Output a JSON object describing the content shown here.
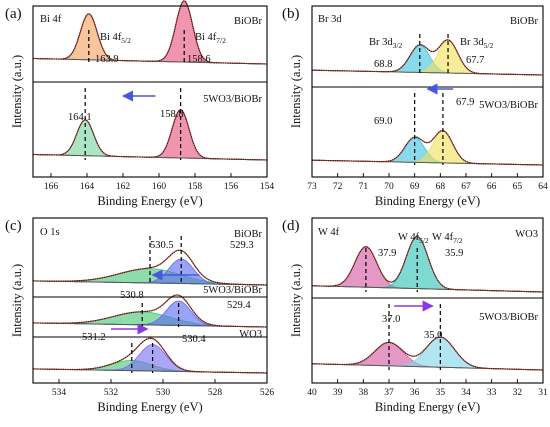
{
  "chart_data": [
    {
      "type": "line",
      "panel": "(a)",
      "core_level": "Bi 4f",
      "xlabel": "Binding Energy (eV)",
      "ylabel": "Intensity (a.u.)",
      "xlim": [
        167,
        154
      ],
      "xticks": [
        166,
        164,
        162,
        160,
        158,
        156,
        154
      ],
      "arrow": {
        "from": 160.2,
        "to": 162.0
      },
      "spectra": [
        {
          "sample": "BiOBr",
          "peaks": [
            {
              "label": "Bi 4f",
              "sub": "5/2",
              "center": 163.9,
              "amplitude": 1.0,
              "fwhm": 1.1,
              "color": "#f4a261"
            },
            {
              "label": "Bi 4f",
              "sub": "7/2",
              "center": 158.6,
              "amplitude": 1.33,
              "fwhm": 1.1,
              "color": "#e75480"
            }
          ],
          "values": [
            "163.9",
            "158.6"
          ]
        },
        {
          "sample": "5WO3/BiOBr",
          "peaks": [
            {
              "center": 164.1,
              "amplitude": 0.78,
              "fwhm": 1.1,
              "color": "#76d7a0"
            },
            {
              "center": 158.8,
              "amplitude": 1.05,
              "fwhm": 1.1,
              "color": "#e75480"
            }
          ],
          "values": [
            "164.1",
            "158.8"
          ]
        }
      ]
    },
    {
      "type": "line",
      "panel": "(b)",
      "core_level": "Br  3d",
      "xlabel": "Binding Energy (eV)",
      "ylabel": "Intensity (a.u.)",
      "xlim": [
        73,
        64
      ],
      "xticks": [
        73,
        72,
        71,
        70,
        69,
        68,
        67,
        66,
        65,
        64
      ],
      "arrow": {
        "from": 67.5,
        "to": 68.5
      },
      "spectra": [
        {
          "sample": "BiOBr",
          "peaks": [
            {
              "label": "Br 3d",
              "sub": "3/2",
              "center": 68.8,
              "amplitude": 0.68,
              "fwhm": 0.9,
              "color": "#40c4e0"
            },
            {
              "label": "Br 3d",
              "sub": "5/2",
              "center": 67.7,
              "amplitude": 0.82,
              "fwhm": 0.9,
              "color": "#f1e05a"
            }
          ],
          "values": [
            "68.8",
            "67.7"
          ]
        },
        {
          "sample": "5WO3/BiOBr",
          "peaks": [
            {
              "center": 69.0,
              "amplitude": 0.62,
              "fwhm": 0.9,
              "color": "#40c4e0"
            },
            {
              "center": 67.9,
              "amplitude": 0.8,
              "fwhm": 0.9,
              "color": "#f1e05a"
            }
          ],
          "values": [
            "69.0",
            "67.9"
          ]
        }
      ]
    },
    {
      "type": "line",
      "panel": "(c)",
      "core_level": "O 1s",
      "xlabel": "Binding Energy (eV)",
      "ylabel": "Intensity (a.u.)",
      "xlim": [
        535,
        526
      ],
      "xticks": [
        534,
        532,
        530,
        528,
        526
      ],
      "arrows": [
        {
          "from": 528.6,
          "to": 530.4
        },
        {
          "from": 532.0,
          "to": 530.6
        }
      ],
      "spectra": [
        {
          "sample": "BiOBr",
          "peaks": [
            {
              "center": 530.5,
              "amplitude": 0.42,
              "fwhm": 2.8,
              "color": "#48c774"
            },
            {
              "center": 529.3,
              "amplitude": 0.72,
              "fwhm": 1.1,
              "color": "#5b6cf0"
            }
          ],
          "values": [
            "530.5",
            "529.3"
          ]
        },
        {
          "sample": "5WO3/BiOBr",
          "peaks": [
            {
              "center": 530.8,
              "amplitude": 0.38,
              "fwhm": 2.6,
              "color": "#48c774"
            },
            {
              "center": 529.4,
              "amplitude": 0.72,
              "fwhm": 1.1,
              "color": "#5b6cf0"
            }
          ],
          "values": [
            "530.8",
            "529.4"
          ]
        },
        {
          "sample": "WO3",
          "peaks": [
            {
              "center": 531.2,
              "amplitude": 0.3,
              "fwhm": 1.8,
              "color": "#48c774"
            },
            {
              "center": 530.4,
              "amplitude": 0.78,
              "fwhm": 1.2,
              "color": "#7b6ff0"
            }
          ],
          "values": [
            "531.2",
            "530.4"
          ]
        }
      ]
    },
    {
      "type": "line",
      "panel": "(d)",
      "core_level": "W 4f",
      "xlabel": "Binding Energy (eV)",
      "ylabel": "Intensity (a.u.)",
      "xlim": [
        40,
        31
      ],
      "xticks": [
        40,
        39,
        38,
        37,
        36,
        35,
        34,
        33,
        32,
        31
      ],
      "arrow": {
        "from": 36.8,
        "to": 35.3
      },
      "spectra": [
        {
          "sample": "WO3",
          "peaks": [
            {
              "label": "W 4f",
              "sub": "5/2",
              "center": 37.9,
              "amplitude": 0.78,
              "fwhm": 1.0,
              "color": "#d35aa0"
            },
            {
              "label": "W 4f",
              "sub": "7/2",
              "center": 35.9,
              "amplitude": 1.0,
              "fwhm": 1.0,
              "color": "#2ec4b6"
            }
          ],
          "values": [
            "37.9",
            "35.9"
          ]
        },
        {
          "sample": "5WO3/BiOBr",
          "peaks": [
            {
              "center": 37.0,
              "amplitude": 0.45,
              "fwhm": 1.3,
              "color": "#d35aa0"
            },
            {
              "center": 35.0,
              "amplitude": 0.58,
              "fwhm": 1.3,
              "color": "#7fd6e8"
            }
          ],
          "values": [
            "37.0",
            "35.0"
          ]
        }
      ]
    }
  ]
}
